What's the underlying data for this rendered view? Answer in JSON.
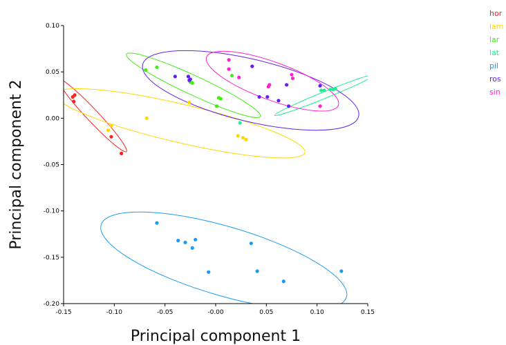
{
  "chart_data": {
    "type": "scatter",
    "title": "",
    "xlabel": "Principal component 1",
    "ylabel": "Principal component 2",
    "xlim": [
      -0.15,
      0.15
    ],
    "ylim": [
      -0.2,
      0.1
    ],
    "x_ticks": [
      "-0.15",
      "-0.10",
      "-0.05",
      "-0.00",
      "0.05",
      "0.10",
      "0.15"
    ],
    "y_ticks": [
      "-0.20",
      "-0.15",
      "-0.10",
      "-0.05",
      "0.00",
      "0.05",
      "0.10"
    ],
    "grid": false,
    "legend_position": "top-right",
    "series": [
      {
        "name": "hor",
        "color": "#ff2020",
        "points": [
          [
            -0.141,
            0.023
          ],
          [
            -0.139,
            0.025
          ],
          [
            -0.14,
            0.018
          ],
          [
            -0.103,
            -0.02
          ],
          [
            -0.093,
            -0.038
          ]
        ],
        "ellipse": {
          "x1": -0.155,
          "y1": 0.042,
          "x2": -0.088,
          "y2": -0.036,
          "width_ratio": 0.12
        }
      },
      {
        "name": "lam",
        "color": "#ffd700",
        "points": [
          [
            -0.103,
            -0.008
          ],
          [
            -0.106,
            -0.013
          ],
          [
            -0.068,
            0.0
          ],
          [
            -0.026,
            0.017
          ],
          [
            0.022,
            -0.019
          ],
          [
            0.027,
            -0.021
          ],
          [
            0.03,
            -0.023
          ]
        ],
        "ellipse": {
          "x1": -0.158,
          "y1": 0.026,
          "x2": 0.088,
          "y2": -0.037,
          "width_ratio": 0.15
        }
      },
      {
        "name": "lar",
        "color": "#40ee10",
        "points": [
          [
            -0.069,
            0.052
          ],
          [
            -0.058,
            0.055
          ],
          [
            -0.025,
            0.039
          ],
          [
            -0.023,
            0.038
          ],
          [
            0.003,
            0.022
          ],
          [
            0.005,
            0.021
          ],
          [
            0.001,
            0.013
          ],
          [
            0.016,
            0.046
          ]
        ],
        "ellipse": {
          "x1": -0.088,
          "y1": 0.069,
          "x2": 0.044,
          "y2": 0.002,
          "width_ratio": 0.13
        }
      },
      {
        "name": "lat",
        "color": "#20ee90",
        "points": [
          [
            0.024,
            -0.005
          ],
          [
            0.104,
            0.03
          ],
          [
            0.107,
            0.03
          ],
          [
            0.113,
            0.031
          ],
          [
            0.116,
            0.031
          ],
          [
            0.118,
            0.032
          ]
        ],
        "ellipse": {
          "x1": 0.058,
          "y1": 0.003,
          "x2": 0.157,
          "y2": 0.047,
          "width_ratio": 0.06
        }
      },
      {
        "name": "pil",
        "color": "#1b9bf0",
        "points": [
          [
            -0.058,
            -0.113
          ],
          [
            -0.037,
            -0.132
          ],
          [
            -0.03,
            -0.134
          ],
          [
            -0.023,
            -0.14
          ],
          [
            -0.02,
            -0.131
          ],
          [
            -0.007,
            -0.166
          ],
          [
            0.035,
            -0.135
          ],
          [
            0.041,
            -0.165
          ],
          [
            0.067,
            -0.176
          ],
          [
            0.124,
            -0.165
          ]
        ],
        "ellipse": {
          "x1": -0.113,
          "y1": -0.115,
          "x2": 0.129,
          "y2": -0.193,
          "width_ratio": 0.27
        }
      },
      {
        "name": "ros",
        "color": "#6020ee",
        "points": [
          [
            -0.04,
            0.045
          ],
          [
            -0.027,
            0.045
          ],
          [
            -0.026,
            0.041
          ],
          [
            -0.025,
            0.042
          ],
          [
            0.036,
            0.056
          ],
          [
            0.043,
            0.023
          ],
          [
            0.051,
            0.023
          ],
          [
            0.062,
            0.019
          ],
          [
            0.07,
            0.036
          ],
          [
            0.072,
            0.013
          ],
          [
            0.103,
            0.035
          ]
        ],
        "ellipse": {
          "x1": -0.072,
          "y1": 0.058,
          "x2": 0.141,
          "y2": 0.002,
          "width_ratio": 0.28
        }
      },
      {
        "name": "sin",
        "color": "#ff20d0",
        "points": [
          [
            0.013,
            0.063
          ],
          [
            0.013,
            0.053
          ],
          [
            0.023,
            0.044
          ],
          [
            0.052,
            0.034
          ],
          [
            0.053,
            0.036
          ],
          [
            0.075,
            0.047
          ],
          [
            0.076,
            0.043
          ],
          [
            0.103,
            0.013
          ]
        ],
        "ellipse": {
          "x1": -0.009,
          "y1": 0.066,
          "x2": 0.121,
          "y2": 0.014,
          "width_ratio": 0.27
        }
      }
    ]
  }
}
